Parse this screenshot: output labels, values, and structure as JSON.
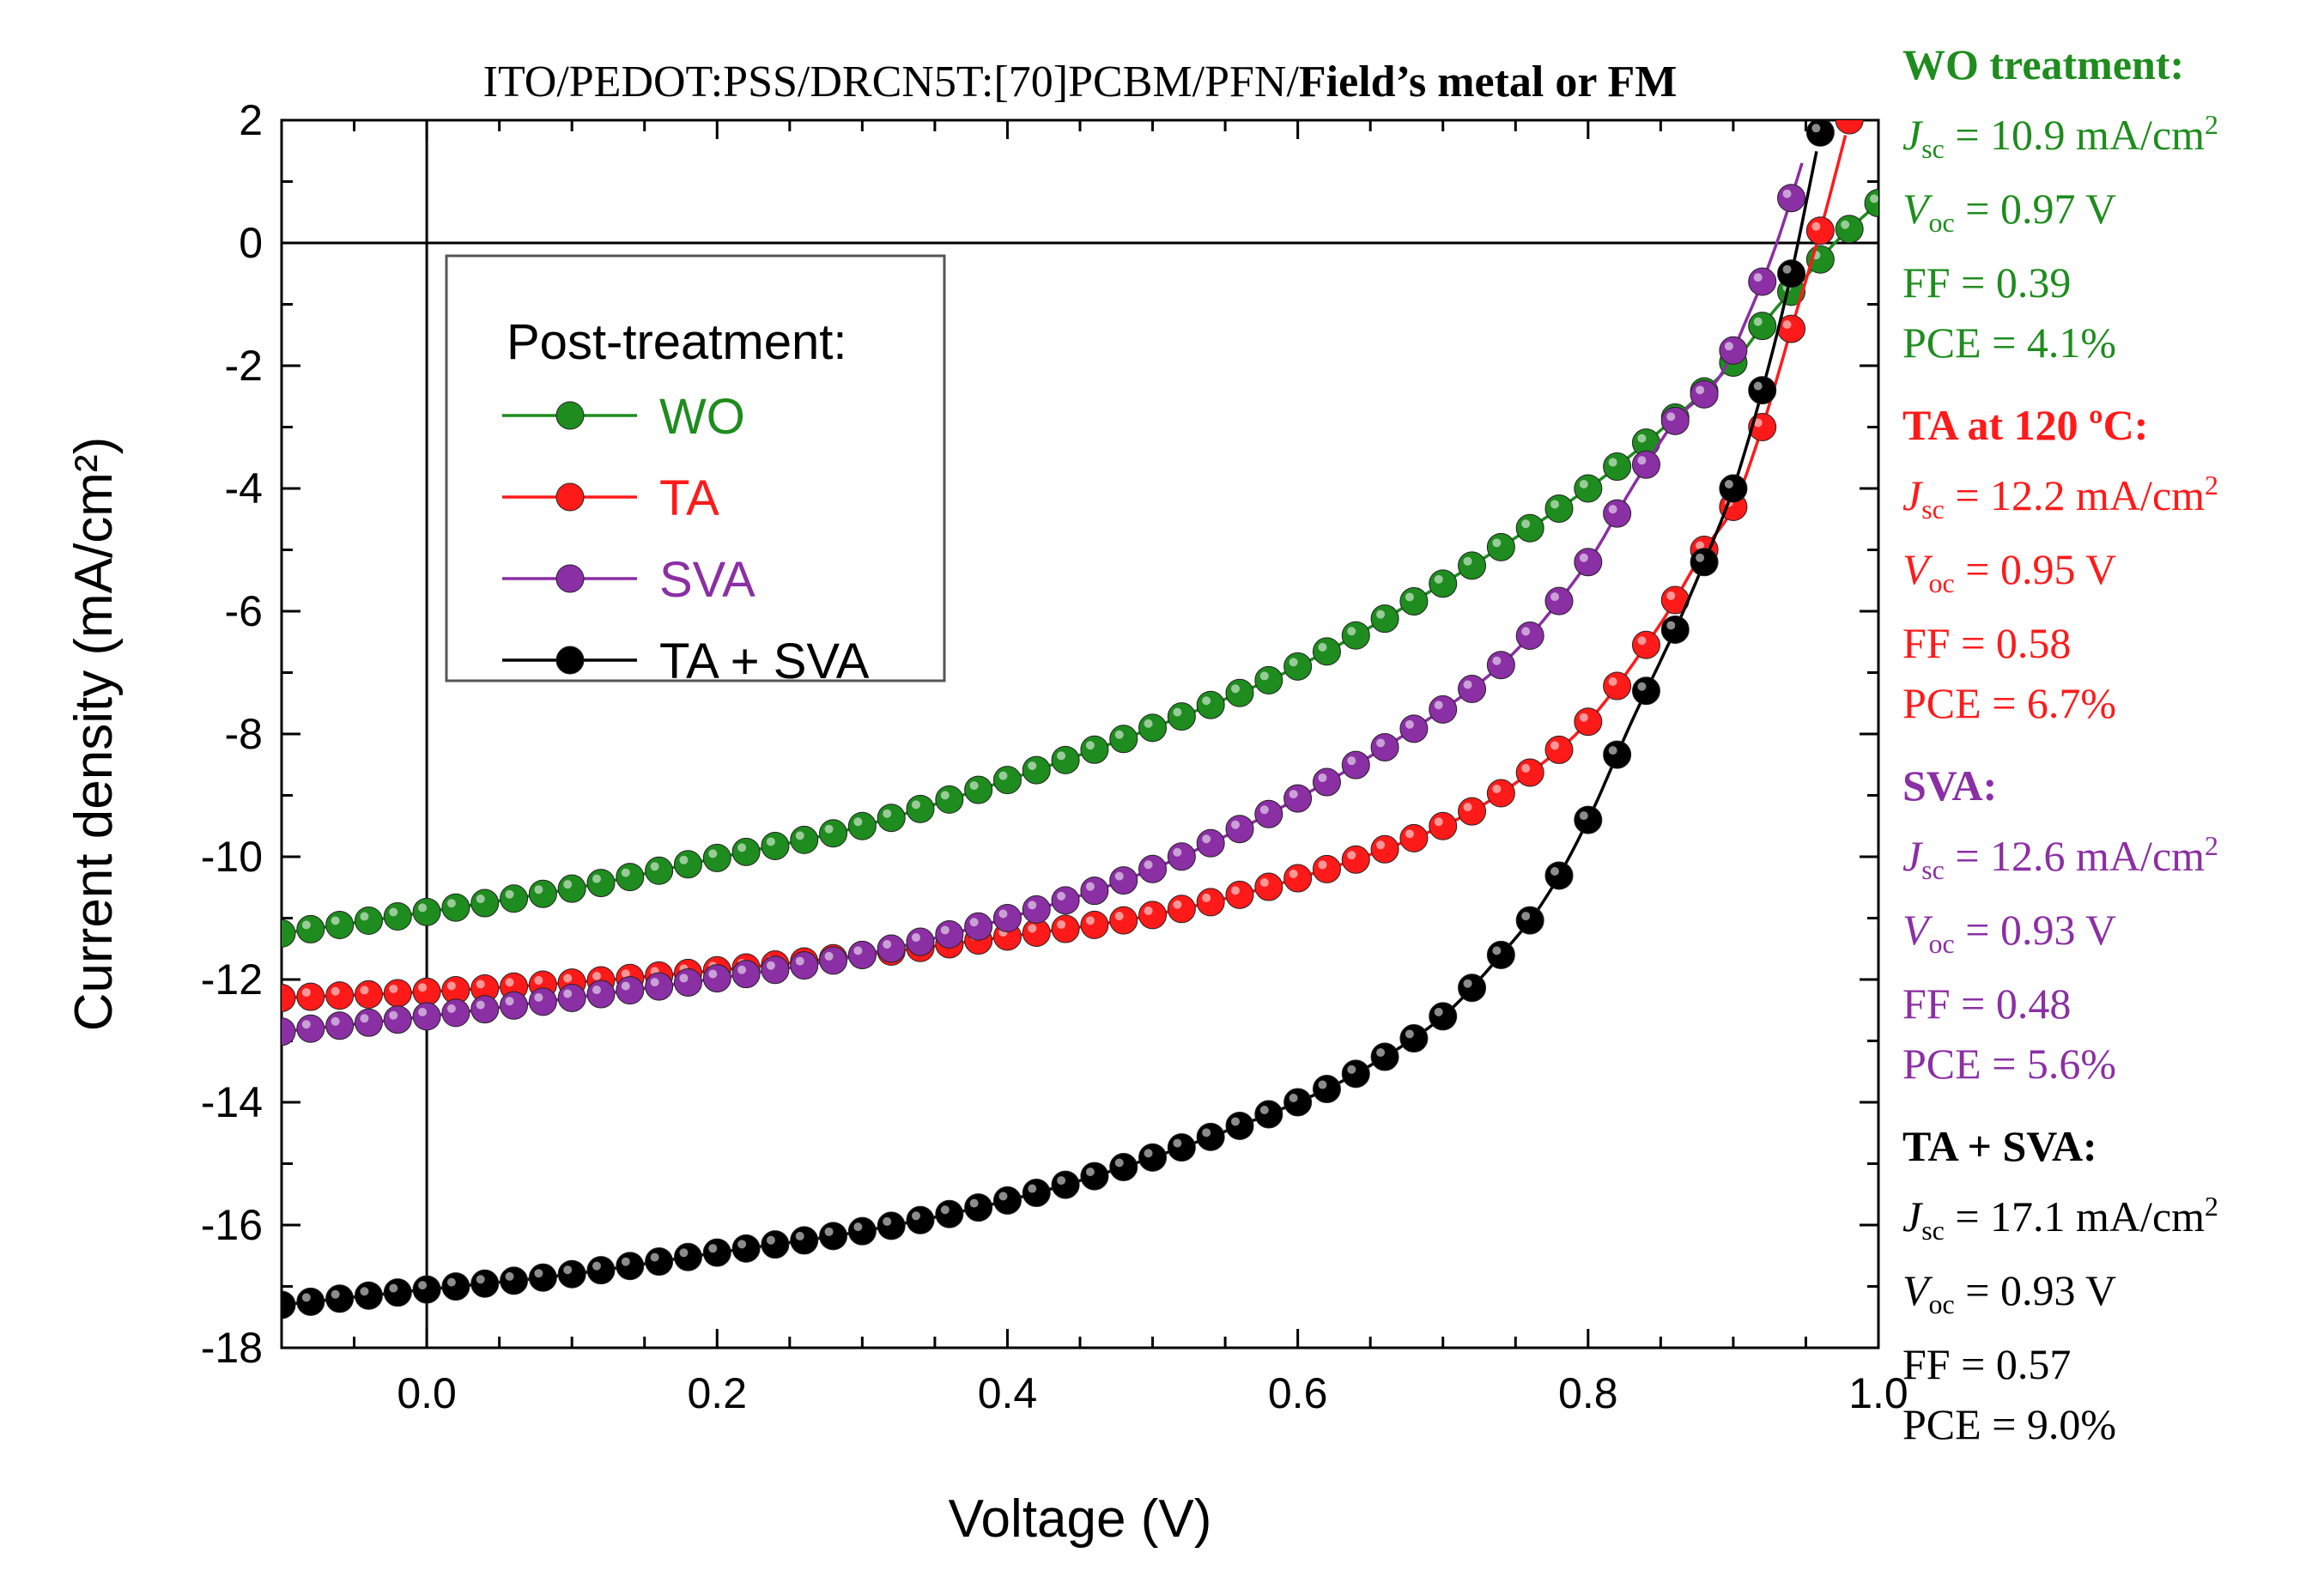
{
  "chart_data": {
    "type": "line",
    "title_normal": "ITO/PEDOT:PSS/DRCN5T:[70]PCBM/PFN/",
    "title_bold": "Field’s metal or FM",
    "xlabel": "Voltage (V)",
    "ylabel": "Current density (mA/cm²)",
    "xlim": [
      -0.1,
      1.0
    ],
    "ylim": [
      -18,
      2
    ],
    "xticks": [
      0.0,
      0.2,
      0.4,
      0.6,
      0.8,
      1.0
    ],
    "xtick_labels": [
      "0.0",
      "0.2",
      "0.4",
      "0.6",
      "0.8",
      "1.0"
    ],
    "yticks": [
      2,
      0,
      -2,
      -4,
      -6,
      -8,
      -10,
      -12,
      -14,
      -16,
      -18
    ],
    "ytick_labels": [
      "2",
      "0",
      "-2",
      "-4",
      "-6",
      "-8",
      "-10",
      "-12",
      "-14",
      "-16",
      "-18"
    ],
    "grid": false,
    "legend": {
      "title": "Post-treatment:",
      "position": "upper-left",
      "entries": [
        "WO",
        "TA",
        "SVA",
        "TA + SVA"
      ]
    },
    "series": [
      {
        "name": "WO",
        "color": "#1e8c1e",
        "Jsc": 10.9,
        "Voc": 0.97,
        "FF": 0.39,
        "pts": [
          [
            -0.1,
            -11.25
          ],
          [
            0.0,
            -10.9
          ],
          [
            0.1,
            -10.52
          ],
          [
            0.2,
            -10.02
          ],
          [
            0.3,
            -9.5
          ],
          [
            0.4,
            -8.75
          ],
          [
            0.5,
            -7.9
          ],
          [
            0.6,
            -6.9
          ],
          [
            0.7,
            -5.55
          ],
          [
            0.8,
            -4.0
          ],
          [
            0.85,
            -3.05
          ],
          [
            0.9,
            -1.95
          ],
          [
            0.93,
            -1.05
          ],
          [
            0.95,
            -0.55
          ],
          [
            0.97,
            0.0
          ],
          [
            1.0,
            0.65
          ]
        ]
      },
      {
        "name": "TA",
        "color": "#ff1a1a",
        "Jsc": 12.2,
        "Voc": 0.95,
        "FF": 0.58,
        "pts": [
          [
            -0.1,
            -12.3
          ],
          [
            0.0,
            -12.2
          ],
          [
            0.1,
            -12.05
          ],
          [
            0.2,
            -11.85
          ],
          [
            0.3,
            -11.6
          ],
          [
            0.4,
            -11.3
          ],
          [
            0.5,
            -10.95
          ],
          [
            0.6,
            -10.35
          ],
          [
            0.7,
            -9.5
          ],
          [
            0.75,
            -8.8
          ],
          [
            0.8,
            -7.8
          ],
          [
            0.85,
            -6.2
          ],
          [
            0.88,
            -5.0
          ],
          [
            0.9,
            -4.3
          ],
          [
            0.92,
            -3.0
          ],
          [
            0.94,
            -1.4
          ],
          [
            0.96,
            0.2
          ],
          [
            0.98,
            2.0
          ]
        ]
      },
      {
        "name": "SVA",
        "color": "#8b2fa4",
        "Jsc": 12.6,
        "Voc": 0.93,
        "FF": 0.48,
        "pts": [
          [
            -0.1,
            -12.85
          ],
          [
            0.0,
            -12.6
          ],
          [
            0.1,
            -12.3
          ],
          [
            0.2,
            -11.98
          ],
          [
            0.3,
            -11.6
          ],
          [
            0.4,
            -11.0
          ],
          [
            0.5,
            -10.2
          ],
          [
            0.6,
            -9.05
          ],
          [
            0.7,
            -7.6
          ],
          [
            0.75,
            -6.65
          ],
          [
            0.8,
            -5.2
          ],
          [
            0.83,
            -4.0
          ],
          [
            0.86,
            -2.9
          ],
          [
            0.89,
            -2.2
          ],
          [
            0.91,
            -1.2
          ],
          [
            0.93,
            0.0
          ],
          [
            0.95,
            1.5
          ]
        ]
      },
      {
        "name": "TA + SVA",
        "color": "#000000",
        "Jsc": 17.1,
        "Voc": 0.93,
        "FF": 0.57,
        "pts": [
          [
            -0.1,
            -17.3
          ],
          [
            0.0,
            -17.05
          ],
          [
            0.1,
            -16.8
          ],
          [
            0.2,
            -16.45
          ],
          [
            0.3,
            -16.1
          ],
          [
            0.4,
            -15.6
          ],
          [
            0.5,
            -14.9
          ],
          [
            0.6,
            -14.0
          ],
          [
            0.65,
            -13.4
          ],
          [
            0.7,
            -12.6
          ],
          [
            0.74,
            -11.6
          ],
          [
            0.77,
            -10.7
          ],
          [
            0.8,
            -9.4
          ],
          [
            0.83,
            -7.8
          ],
          [
            0.86,
            -6.3
          ],
          [
            0.88,
            -5.2
          ],
          [
            0.9,
            -4.0
          ],
          [
            0.92,
            -2.4
          ],
          [
            0.94,
            -0.5
          ],
          [
            0.96,
            1.8
          ]
        ]
      }
    ],
    "annotations": [
      {
        "header": "WO treatment:",
        "color": "#1e8c1e",
        "jsc": "= 10.9 mA/cm",
        "voc": "= 0.97 V",
        "ff": "FF = 0.39",
        "pce": "PCE = 4.1%"
      },
      {
        "header": "TA at 120 ºC:",
        "color": "#ff1a1a",
        "jsc": "= 12.2 mA/cm",
        "voc": "= 0.95 V",
        "ff": "FF = 0.58",
        "pce": "PCE = 6.7%"
      },
      {
        "header": "SVA:",
        "color": "#8b2fa4",
        "jsc": "= 12.6 mA/cm",
        "voc": "= 0.93 V",
        "ff": "FF = 0.48",
        "pce": "PCE = 5.6%"
      },
      {
        "header": "TA + SVA:",
        "color": "#000000",
        "jsc": "= 17.1 mA/cm",
        "voc": "= 0.93 V",
        "ff": "FF = 0.57",
        "pce": "PCE = 9.0%"
      }
    ],
    "symbols": {
      "J": "J",
      "V": "V",
      "sc": "sc",
      "oc": "oc",
      "sq": "2"
    }
  }
}
